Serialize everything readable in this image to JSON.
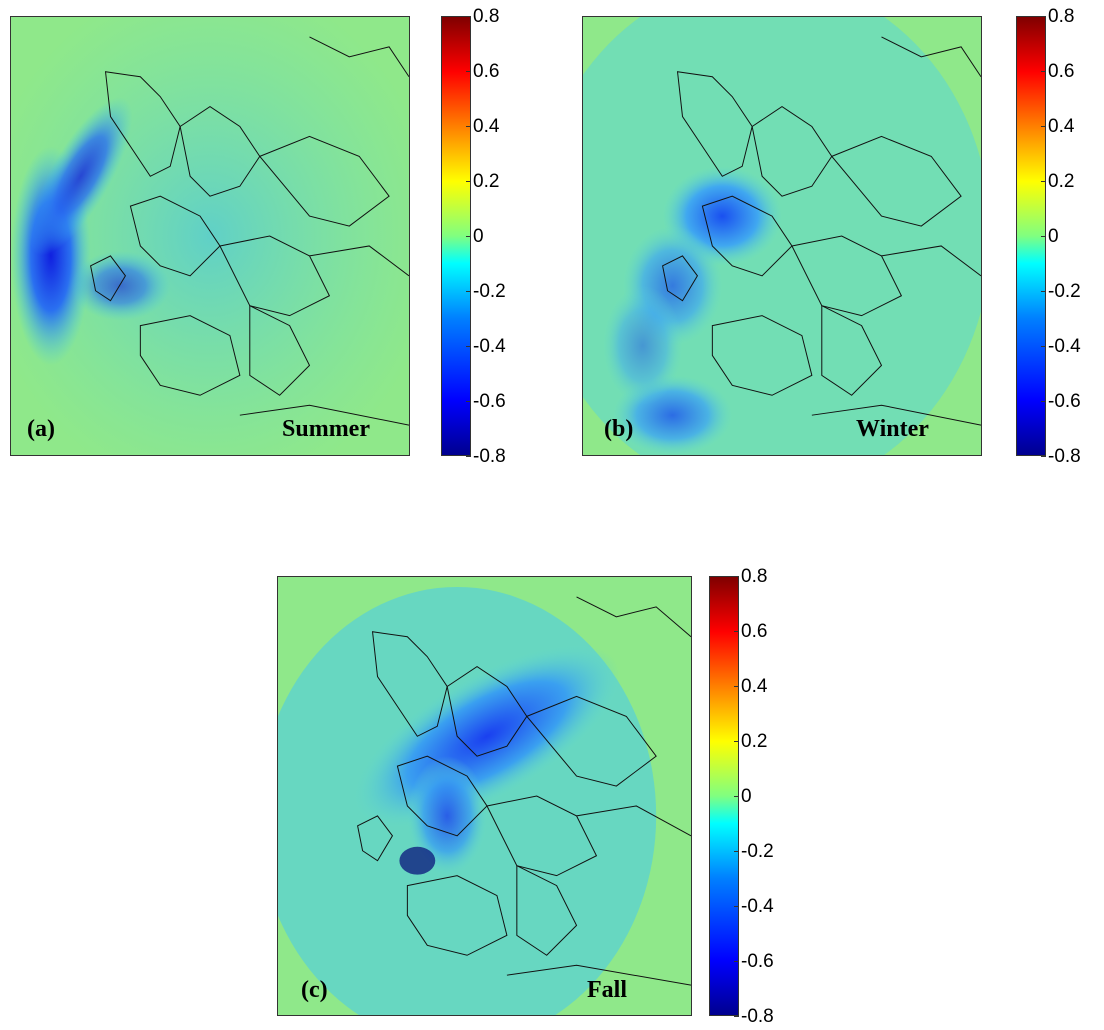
{
  "colorbar": {
    "ticks": [
      "0.8",
      "0.6",
      "0.4",
      "0.2",
      "0",
      "-0.2",
      "-0.4",
      "-0.6",
      "-0.8"
    ],
    "range": [
      -0.8,
      0.8
    ],
    "colormap": "jet"
  },
  "panels": [
    {
      "id": "a",
      "label": "(a)",
      "season": "Summer"
    },
    {
      "id": "b",
      "label": "(b)",
      "season": "Winter"
    },
    {
      "id": "c",
      "label": "(c)",
      "season": "Fall"
    }
  ],
  "colors": {
    "background_field": "#8fe88a",
    "negative_mid": "#3cc8ee",
    "negative_strong": "#1a3cff",
    "border_lines": "#111111"
  }
}
